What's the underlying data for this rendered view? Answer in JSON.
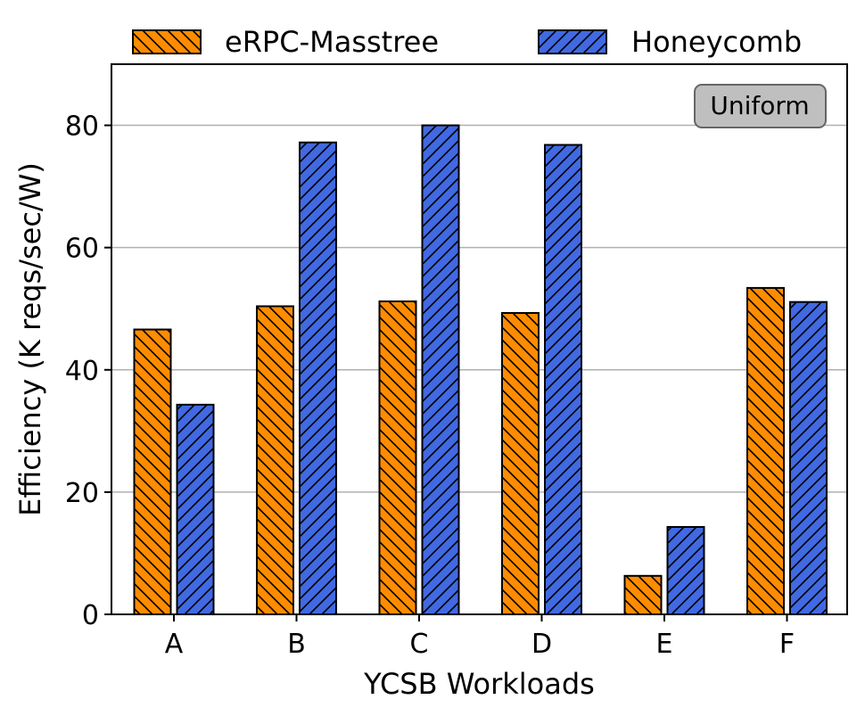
{
  "chart_data": {
    "type": "bar",
    "xlabel": "YCSB Workloads",
    "ylabel": "Efficiency (K reqs/sec/W)",
    "categories": [
      "A",
      "B",
      "C",
      "D",
      "E",
      "F"
    ],
    "series": [
      {
        "name": "eRPC-Masstree",
        "values": [
          46.6,
          50.4,
          51.2,
          49.3,
          6.3,
          53.4
        ],
        "color": "#ff8c00",
        "hatch": "backslash"
      },
      {
        "name": "Honeycomb",
        "values": [
          34.3,
          77.2,
          80.0,
          76.8,
          14.3,
          51.1
        ],
        "color": "#4169e1",
        "hatch": "slash"
      }
    ],
    "ylim": [
      0,
      90
    ],
    "yticks": [
      0,
      20,
      40,
      60,
      80
    ],
    "grid": "y",
    "legend": "top",
    "annotation": "Uniform"
  }
}
